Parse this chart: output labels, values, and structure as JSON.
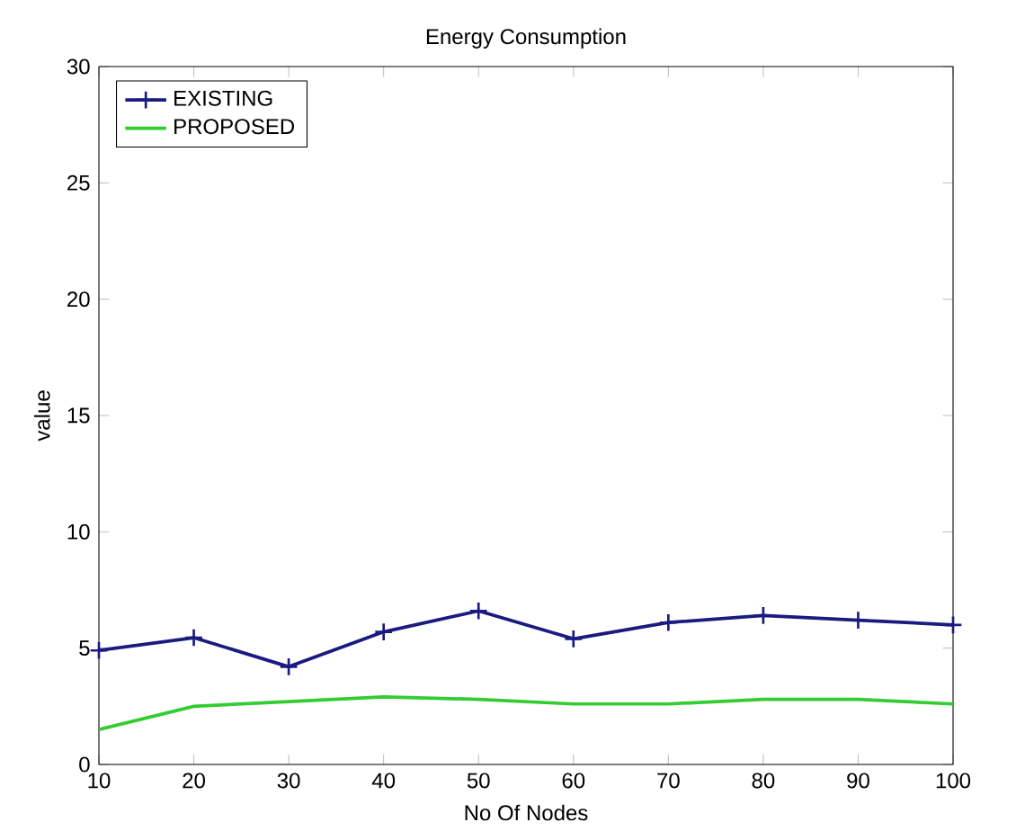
{
  "chart_data": {
    "type": "line",
    "title": "Energy Consumption",
    "xlabel": "No Of Nodes",
    "ylabel": "value",
    "x": [
      10,
      20,
      30,
      40,
      50,
      60,
      70,
      80,
      90,
      100
    ],
    "series": [
      {
        "name": "EXISTING",
        "color": "#1a1a80",
        "marker": "cross",
        "values": [
          4.9,
          5.45,
          4.2,
          5.7,
          6.6,
          5.4,
          6.1,
          6.4,
          6.2,
          6.0
        ]
      },
      {
        "name": "PROPOSED",
        "color": "#33cc33",
        "marker": "none",
        "values": [
          1.5,
          2.5,
          2.7,
          2.9,
          2.8,
          2.6,
          2.6,
          2.8,
          2.8,
          2.6
        ]
      }
    ],
    "xlim": [
      10,
      100
    ],
    "xticks": [
      10,
      20,
      30,
      40,
      50,
      60,
      70,
      80,
      90,
      100
    ],
    "ylim": [
      0,
      30
    ],
    "yticks": [
      0,
      5,
      10,
      15,
      20,
      25,
      30
    ],
    "legend": "top left",
    "grid": false
  }
}
